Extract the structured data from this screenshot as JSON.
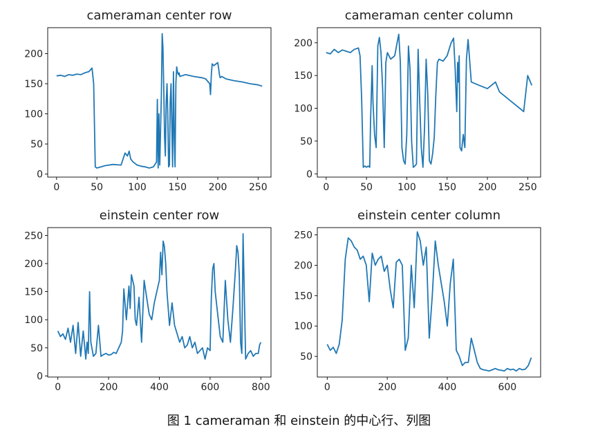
{
  "caption": "图 1 cameraman 和 einstein 的中心行、列图",
  "chart_data": [
    {
      "type": "line",
      "title": "cameraman center row",
      "xlim": [
        -11,
        266
      ],
      "ylim": [
        -5,
        243
      ],
      "xticks": [
        0,
        50,
        100,
        150,
        200,
        250
      ],
      "yticks": [
        0,
        50,
        100,
        150,
        200
      ],
      "color": "#1f77b4",
      "x": [
        0,
        5,
        10,
        15,
        20,
        25,
        30,
        35,
        40,
        44,
        46,
        48,
        50,
        55,
        60,
        70,
        80,
        85,
        88,
        90,
        92,
        95,
        100,
        105,
        110,
        115,
        120,
        124,
        125,
        126,
        127,
        128,
        130,
        131,
        132,
        133,
        134,
        135,
        136,
        137,
        138,
        139,
        140,
        141,
        142,
        143,
        144,
        145,
        146,
        147,
        148,
        149,
        150,
        151,
        152,
        153,
        155,
        160,
        170,
        180,
        185,
        190,
        191,
        192,
        193,
        195,
        200,
        201,
        202,
        203,
        205,
        210,
        220,
        230,
        240,
        250,
        255
      ],
      "y": [
        163,
        164,
        162,
        165,
        164,
        166,
        165,
        168,
        170,
        176,
        150,
        12,
        10,
        12,
        14,
        16,
        15,
        35,
        30,
        38,
        25,
        20,
        15,
        13,
        12,
        10,
        12,
        20,
        124,
        10,
        100,
        15,
        130,
        233,
        210,
        140,
        60,
        30,
        120,
        150,
        100,
        12,
        15,
        120,
        150,
        80,
        12,
        170,
        60,
        12,
        150,
        178,
        170,
        165,
        168,
        162,
        163,
        165,
        162,
        160,
        158,
        150,
        132,
        165,
        183,
        180,
        185,
        176,
        165,
        160,
        162,
        158,
        155,
        153,
        150,
        148,
        146
      ]
    },
    {
      "type": "line",
      "title": "cameraman center column",
      "xlim": [
        -11,
        266
      ],
      "ylim": [
        -5,
        223
      ],
      "xticks": [
        0,
        50,
        100,
        150,
        200,
        250
      ],
      "yticks": [
        0,
        50,
        100,
        150,
        200
      ],
      "color": "#1f77b4",
      "x": [
        0,
        5,
        10,
        15,
        20,
        25,
        30,
        35,
        40,
        42,
        44,
        46,
        48,
        50,
        52,
        54,
        55,
        57,
        58,
        60,
        62,
        64,
        66,
        68,
        70,
        72,
        74,
        76,
        80,
        85,
        88,
        90,
        92,
        94,
        96,
        98,
        100,
        102,
        104,
        106,
        108,
        110,
        112,
        114,
        116,
        118,
        120,
        122,
        124,
        126,
        128,
        130,
        132,
        134,
        136,
        138,
        140,
        145,
        150,
        155,
        158,
        160,
        162,
        163,
        164,
        165,
        166,
        168,
        170,
        172,
        174,
        176,
        180,
        190,
        200,
        210,
        215,
        220,
        225,
        230,
        235,
        240,
        245,
        250,
        255
      ],
      "y": [
        185,
        183,
        190,
        185,
        189,
        187,
        185,
        190,
        192,
        180,
        115,
        10,
        12,
        10,
        12,
        10,
        80,
        165,
        110,
        60,
        40,
        195,
        208,
        185,
        130,
        40,
        170,
        185,
        175,
        180,
        200,
        213,
        170,
        40,
        20,
        15,
        60,
        195,
        160,
        50,
        10,
        12,
        15,
        190,
        110,
        40,
        10,
        70,
        175,
        120,
        20,
        15,
        30,
        55,
        120,
        170,
        175,
        172,
        180,
        200,
        207,
        160,
        95,
        170,
        140,
        180,
        40,
        35,
        60,
        40,
        175,
        205,
        140,
        135,
        130,
        140,
        125,
        120,
        115,
        110,
        105,
        100,
        95,
        150,
        135
      ]
    },
    {
      "type": "line",
      "title": "einstein center row",
      "xlim": [
        -40,
        840
      ],
      "ylim": [
        -2,
        264
      ],
      "xticks": [
        0,
        200,
        400,
        600,
        800
      ],
      "yticks": [
        0,
        50,
        100,
        150,
        200,
        250
      ],
      "color": "#1f77b4",
      "x": [
        0,
        10,
        20,
        30,
        40,
        50,
        60,
        70,
        80,
        90,
        100,
        110,
        115,
        120,
        125,
        130,
        140,
        150,
        160,
        170,
        180,
        190,
        200,
        210,
        220,
        230,
        240,
        250,
        255,
        260,
        270,
        280,
        285,
        290,
        300,
        305,
        310,
        320,
        330,
        340,
        350,
        360,
        370,
        380,
        390,
        400,
        405,
        410,
        415,
        420,
        425,
        430,
        440,
        450,
        460,
        470,
        480,
        490,
        500,
        510,
        520,
        530,
        540,
        550,
        560,
        570,
        580,
        590,
        600,
        605,
        610,
        615,
        620,
        630,
        640,
        650,
        660,
        670,
        680,
        690,
        700,
        705,
        710,
        715,
        720,
        725,
        730,
        740,
        750,
        760,
        770,
        780,
        790,
        795,
        800
      ],
      "y": [
        80,
        70,
        75,
        65,
        85,
        60,
        90,
        40,
        95,
        35,
        80,
        30,
        60,
        40,
        150,
        60,
        35,
        40,
        90,
        35,
        38,
        40,
        37,
        38,
        42,
        40,
        50,
        60,
        80,
        155,
        100,
        160,
        120,
        180,
        160,
        100,
        90,
        140,
        60,
        170,
        140,
        110,
        100,
        130,
        150,
        170,
        220,
        180,
        240,
        230,
        200,
        150,
        90,
        130,
        90,
        75,
        60,
        70,
        50,
        55,
        70,
        50,
        60,
        40,
        45,
        50,
        30,
        50,
        45,
        140,
        190,
        200,
        150,
        110,
        70,
        60,
        170,
        100,
        60,
        120,
        190,
        232,
        220,
        180,
        60,
        40,
        253,
        30,
        40,
        45,
        35,
        40,
        40,
        55,
        60
      ]
    },
    {
      "type": "line",
      "title": "einstein center column",
      "xlim": [
        -33,
        711
      ],
      "ylim": [
        16,
        262
      ],
      "xticks": [
        0,
        200,
        400,
        600
      ],
      "yticks": [
        50,
        100,
        150,
        200,
        250
      ],
      "color": "#1f77b4",
      "x": [
        0,
        10,
        20,
        30,
        40,
        50,
        60,
        70,
        80,
        90,
        100,
        110,
        120,
        130,
        140,
        150,
        160,
        170,
        180,
        190,
        200,
        210,
        220,
        230,
        240,
        250,
        260,
        270,
        280,
        290,
        300,
        310,
        320,
        330,
        340,
        350,
        360,
        370,
        380,
        390,
        400,
        410,
        420,
        430,
        440,
        450,
        460,
        470,
        480,
        490,
        500,
        510,
        520,
        530,
        540,
        550,
        560,
        570,
        580,
        590,
        600,
        610,
        620,
        630,
        640,
        650,
        660,
        670,
        680
      ],
      "y": [
        70,
        60,
        65,
        55,
        70,
        110,
        210,
        245,
        240,
        230,
        225,
        210,
        215,
        200,
        140,
        220,
        200,
        210,
        215,
        190,
        200,
        160,
        130,
        205,
        210,
        200,
        60,
        80,
        200,
        130,
        255,
        240,
        200,
        230,
        80,
        150,
        240,
        200,
        170,
        140,
        100,
        170,
        210,
        60,
        50,
        35,
        40,
        40,
        80,
        60,
        40,
        30,
        28,
        27,
        26,
        28,
        30,
        28,
        27,
        26,
        30,
        28,
        29,
        26,
        30,
        28,
        29,
        35,
        48
      ]
    }
  ]
}
